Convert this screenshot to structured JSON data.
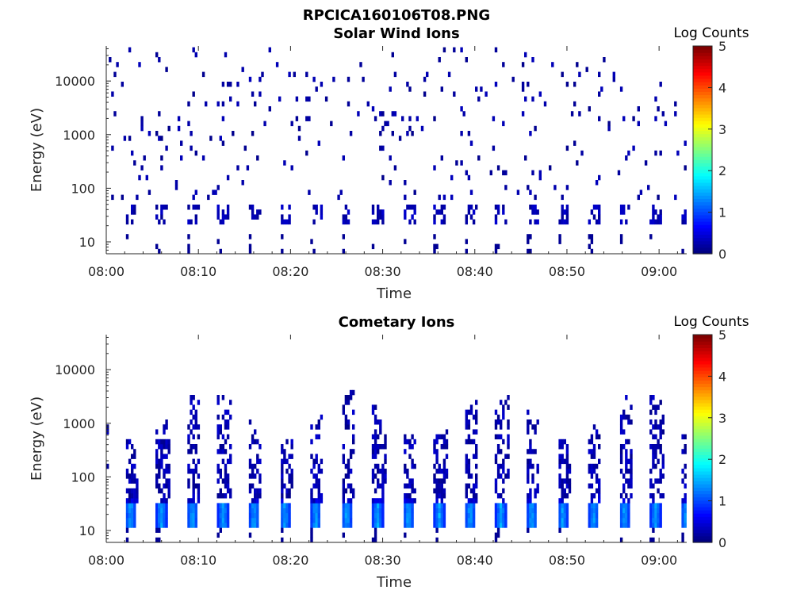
{
  "figure": {
    "title": "RPCICA160106T08.PNG"
  },
  "chart_data": [
    {
      "type": "heatmap",
      "title": "Solar Wind Ions",
      "xlabel": "Time",
      "ylabel": "Energy (eV)",
      "x_ticks": [
        "08:00",
        "08:10",
        "08:20",
        "08:30",
        "08:40",
        "08:50",
        "09:00"
      ],
      "x_range": [
        "08:00",
        "09:03"
      ],
      "y_ticks": [
        "10",
        "100",
        "1000",
        "10000"
      ],
      "y_scale": "log",
      "y_range": [
        6,
        45000
      ],
      "colorbar": {
        "title": "Log Counts",
        "ticks": [
          "0",
          "1",
          "2",
          "3",
          "4",
          "5"
        ],
        "range": [
          0,
          5
        ],
        "colormap": "jet"
      },
      "sweep_period_min": 3.35,
      "sweep_start_min": 2.9,
      "low_energy_band_ev": [
        20,
        45
      ],
      "sparse_counts_log": [
        0,
        0.3
      ],
      "max_log_counts": 0.4
    },
    {
      "type": "heatmap",
      "title": "Cometary Ions",
      "xlabel": "Time",
      "ylabel": "Energy (eV)",
      "x_ticks": [
        "08:00",
        "08:10",
        "08:20",
        "08:30",
        "08:40",
        "08:50",
        "09:00"
      ],
      "x_range": [
        "08:00",
        "09:03"
      ],
      "y_ticks": [
        "10",
        "100",
        "1000",
        "10000"
      ],
      "y_scale": "log",
      "y_range": [
        6,
        45000
      ],
      "colorbar": {
        "title": "Log Counts",
        "ticks": [
          "0",
          "1",
          "2",
          "3",
          "4",
          "5"
        ],
        "range": [
          0,
          5
        ],
        "colormap": "jet"
      },
      "sweep_period_min": 3.35,
      "sweep_start_min": 2.9,
      "sweep_upper_energy_ev": [
        400,
        4000
      ],
      "core_band_ev": [
        12,
        35
      ],
      "core_log_counts": [
        0.8,
        1.6
      ],
      "max_log_counts": 1.7
    }
  ]
}
